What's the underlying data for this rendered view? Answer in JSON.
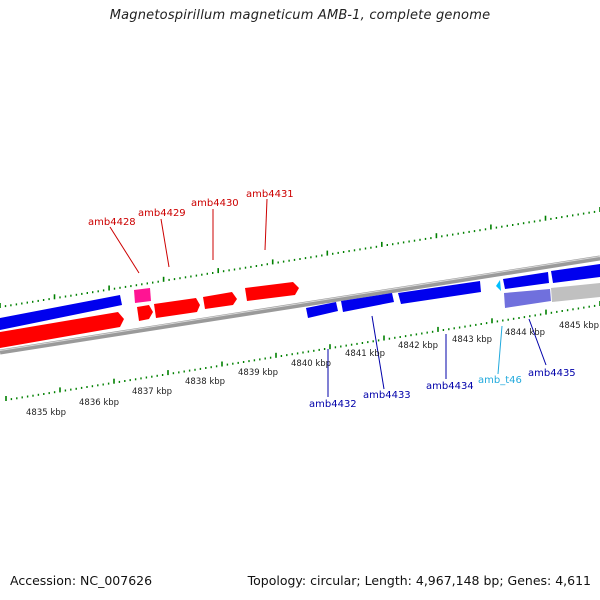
{
  "title": "Magnetospirillum magneticum AMB-1, complete genome",
  "footer": {
    "accession": "Accession: NC_007626",
    "summary": "Topology: circular; Length: 4,967,148 bp; Genes: 4,611"
  },
  "colors": {
    "forward_cds": "#ff0000",
    "reverse_cds": "#0000ee",
    "pink_feature": "#ff1493",
    "trna": "#00bfff",
    "backbone": "#808080",
    "ticks": "#008000",
    "forward_label": "#cc0000",
    "reverse_label": "#0000aa",
    "trna_label": "#22aadd"
  },
  "scale_labels": [
    "4835 kbp",
    "4836 kbp",
    "4837 kbp",
    "4838 kbp",
    "4839 kbp",
    "4840 kbp",
    "4841 kbp",
    "4842 kbp",
    "4843 kbp",
    "4844 kbp",
    "4845 kbp"
  ],
  "forward_gene_labels": [
    "amb4428",
    "amb4429",
    "amb4430",
    "amb4431"
  ],
  "reverse_gene_labels": [
    "amb4432",
    "amb4433",
    "amb4434",
    "amb4435"
  ],
  "trna_label": "amb_t46"
}
